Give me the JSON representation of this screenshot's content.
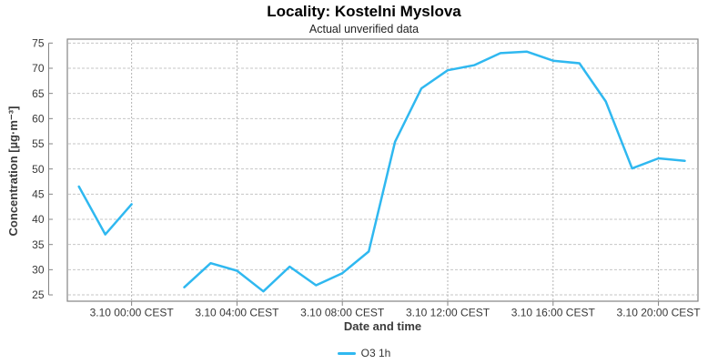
{
  "chart_data": {
    "type": "line",
    "title": "Locality: Kostelni Myslova",
    "subtitle": "Actual unverified data",
    "xlabel": "Date and time",
    "ylabel": "Concentration [µg·m⁻³]",
    "legend_position": "bottom-center",
    "grid": "dashed",
    "colors": {
      "line": "#2FB8F0",
      "plot_border": "#848484",
      "axis": "#848484",
      "grid_h": "#c6c6c6",
      "grid_v": "#b3b3b3",
      "tick_text": "#383838"
    },
    "ylim": [
      23.74,
      75.78
    ],
    "yticks": [
      25,
      30,
      35,
      40,
      45,
      50,
      55,
      60,
      65,
      70,
      75
    ],
    "xlim_hours": [
      -2.44,
      21.5
    ],
    "xticks": [
      {
        "hour": 0,
        "label": "3.10 00:00 CEST"
      },
      {
        "hour": 4,
        "label": "3.10 04:00 CEST"
      },
      {
        "hour": 8,
        "label": "3.10 08:00 CEST"
      },
      {
        "hour": 12,
        "label": "3.10 12:00 CEST"
      },
      {
        "hour": 16,
        "label": "3.10 16:00 CEST"
      },
      {
        "hour": 20,
        "label": "3.10 20:00 CEST"
      }
    ],
    "series": [
      {
        "name": "O3 1h",
        "points": [
          {
            "time": "2.10 22:00",
            "hour": -2,
            "value": 46.5
          },
          {
            "time": "2.10 23:00",
            "hour": -1,
            "value": 37.0
          },
          {
            "time": "3.10 00:00",
            "hour": 0,
            "value": 43.0
          },
          {
            "time": "3.10 01:00",
            "hour": 1,
            "value": null
          },
          {
            "time": "3.10 02:00",
            "hour": 2,
            "value": 26.5
          },
          {
            "time": "3.10 03:00",
            "hour": 3,
            "value": 31.3
          },
          {
            "time": "3.10 04:00",
            "hour": 4,
            "value": 29.8
          },
          {
            "time": "3.10 05:00",
            "hour": 5,
            "value": 25.7
          },
          {
            "time": "3.10 06:00",
            "hour": 6,
            "value": 30.6
          },
          {
            "time": "3.10 07:00",
            "hour": 7,
            "value": 26.9
          },
          {
            "time": "3.10 08:00",
            "hour": 8,
            "value": 29.3
          },
          {
            "time": "3.10 09:00",
            "hour": 9,
            "value": 33.6
          },
          {
            "time": "3.10 10:00",
            "hour": 10,
            "value": 55.4
          },
          {
            "time": "3.10 11:00",
            "hour": 11,
            "value": 66.0
          },
          {
            "time": "3.10 12:00",
            "hour": 12,
            "value": 69.6
          },
          {
            "time": "3.10 13:00",
            "hour": 13,
            "value": 70.6
          },
          {
            "time": "3.10 14:00",
            "hour": 14,
            "value": 73.0
          },
          {
            "time": "3.10 15:00",
            "hour": 15,
            "value": 73.3
          },
          {
            "time": "3.10 16:00",
            "hour": 16,
            "value": 71.5
          },
          {
            "time": "3.10 17:00",
            "hour": 17,
            "value": 71.0
          },
          {
            "time": "3.10 18:00",
            "hour": 18,
            "value": 63.4
          },
          {
            "time": "3.10 19:00",
            "hour": 19,
            "value": 50.1
          },
          {
            "time": "3.10 20:00",
            "hour": 20,
            "value": 52.1
          },
          {
            "time": "3.10 21:00",
            "hour": 21,
            "value": 51.6
          }
        ]
      }
    ]
  }
}
